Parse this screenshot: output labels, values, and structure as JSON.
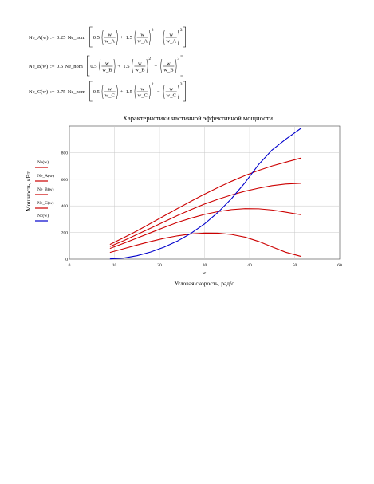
{
  "formulas": [
    {
      "lhs": "Ne_A(w)",
      "assign": ":=",
      "coef": "0.25",
      "nom": "Ne_nom",
      "a": "0.5",
      "b": "1.5",
      "num": "w",
      "den": "w_A",
      "p2": "2",
      "p3": "3",
      "minus": "−",
      "plus": "+"
    },
    {
      "lhs": "Ne_B(w)",
      "assign": ":=",
      "coef": "0.5",
      "nom": "Ne_nom",
      "a": "0.5",
      "b": "1.5",
      "num": "w",
      "den": "w_B",
      "p2": "2",
      "p3": "3",
      "minus": "−",
      "plus": "+"
    },
    {
      "lhs": "Ne_C(w)",
      "assign": ":=",
      "coef": "0.75",
      "nom": "Ne_nom",
      "a": "0.5",
      "b": "1.5",
      "num": "w",
      "den": "w_C",
      "p2": "2",
      "p3": "3",
      "minus": "−",
      "plus": "+"
    }
  ],
  "chart_data": {
    "type": "line",
    "title": "Характеристики частичной эффективной мощности",
    "xlabel": "Угловая скорость, рад/с",
    "xvar": "w",
    "ylabel": "Мощность, кВт",
    "xlim": [
      0,
      60
    ],
    "ylim": [
      0,
      1000
    ],
    "xticks": [
      0,
      10,
      20,
      30,
      40,
      50,
      60
    ],
    "yticks": [
      0,
      200,
      400,
      600,
      800
    ],
    "grid": true,
    "colors": {
      "red": "#cc0000",
      "blue": "#0000cc"
    },
    "x": [
      9,
      12,
      15,
      18,
      21,
      24,
      27,
      30,
      33,
      36,
      39,
      42,
      45,
      48,
      51.5
    ],
    "series": [
      {
        "name": "Ne(w)",
        "color": "#cc0000",
        "values": [
          110,
          160,
          212,
          268,
          324,
          380,
          435,
          488,
          538,
          585,
          628,
          666,
          700,
          728,
          760
        ]
      },
      {
        "name": "Ne_A(w)",
        "color": "#cc0000",
        "values": [
          50,
          78,
          106,
          132,
          156,
          175,
          189,
          196,
          195,
          185,
          165,
          133,
          92,
          52,
          20
        ]
      },
      {
        "name": "Ne_B(w)",
        "color": "#cc0000",
        "values": [
          80,
          118,
          158,
          198,
          238,
          276,
          308,
          336,
          357,
          372,
          379,
          378,
          369,
          353,
          333
        ]
      },
      {
        "name": "Ne_C(w)",
        "color": "#cc0000",
        "values": [
          95,
          138,
          185,
          232,
          280,
          328,
          372,
          414,
          450,
          482,
          510,
          533,
          552,
          564,
          570
        ]
      },
      {
        "name": "Nc(w)",
        "color": "#0000cc",
        "values": [
          2,
          8,
          26,
          53,
          90,
          136,
          194,
          265,
          352,
          455,
          575,
          710,
          820,
          900,
          985
        ]
      }
    ]
  }
}
